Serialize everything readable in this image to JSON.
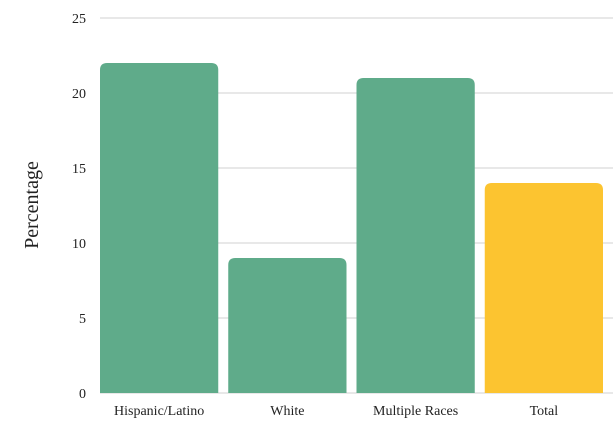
{
  "chart_data": {
    "type": "bar",
    "categories": [
      "Hispanic/Latino",
      "White",
      "Multiple Races",
      "Total"
    ],
    "values": [
      22,
      9,
      21,
      14
    ],
    "title": "",
    "xlabel": "",
    "ylabel": "Percentage",
    "ylim": [
      0,
      25
    ],
    "yticks": [
      0,
      5,
      10,
      15,
      20,
      25
    ],
    "grid": true,
    "legend": "none",
    "colors": {
      "bar": "#5fab8a",
      "total_bar": "#fcc430"
    }
  }
}
